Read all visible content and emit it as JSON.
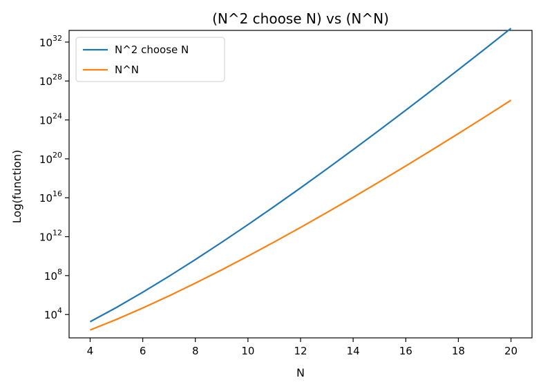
{
  "chart_data": {
    "type": "line",
    "title": "(N^2 choose N) vs (N^N)",
    "xlabel": "N",
    "ylabel": "Log(function)",
    "x": [
      4,
      5,
      6,
      7,
      8,
      9,
      10,
      11,
      12,
      13,
      14,
      15,
      16,
      17,
      18,
      19,
      20
    ],
    "xlim": [
      3.2,
      20.8
    ],
    "xticks": [
      4,
      6,
      8,
      10,
      12,
      14,
      16,
      18,
      20
    ],
    "ylim_log10": [
      1.6,
      33.2
    ],
    "y_scale": "log",
    "yticks_exponents": [
      4,
      8,
      12,
      16,
      20,
      24,
      28,
      32
    ],
    "ytick_base": "10",
    "grid": false,
    "legend_position": "top-left",
    "series": [
      {
        "name": "N^2 choose N",
        "color": "#1f77b4",
        "values": [
          1820,
          53130,
          1947792,
          85900584,
          4426165368,
          260887834350,
          17310309456440.064,
          1276252146100000.0,
          1.0356e+17,
          9.176e+18,
          8.8e+20,
          9.1e+22,
          1e+25,
          1.17e+27,
          1.45e+29,
          1.89e+31,
          2.59e+33
        ]
      },
      {
        "name": "N^N",
        "color": "#ff7f0e",
        "values": [
          256,
          3125,
          46656,
          823543,
          16777216,
          387420489,
          10000000000.0,
          285311670611,
          8916100448256,
          302875106592253,
          1.1112006825558016e+16,
          4.378938903808594e+17,
          1.8446744073709552e+19,
          8.272402618863368e+20,
          3.934640807529654e+22,
          1.9784196556603136e+24,
          1.048576e+26
        ]
      }
    ]
  }
}
